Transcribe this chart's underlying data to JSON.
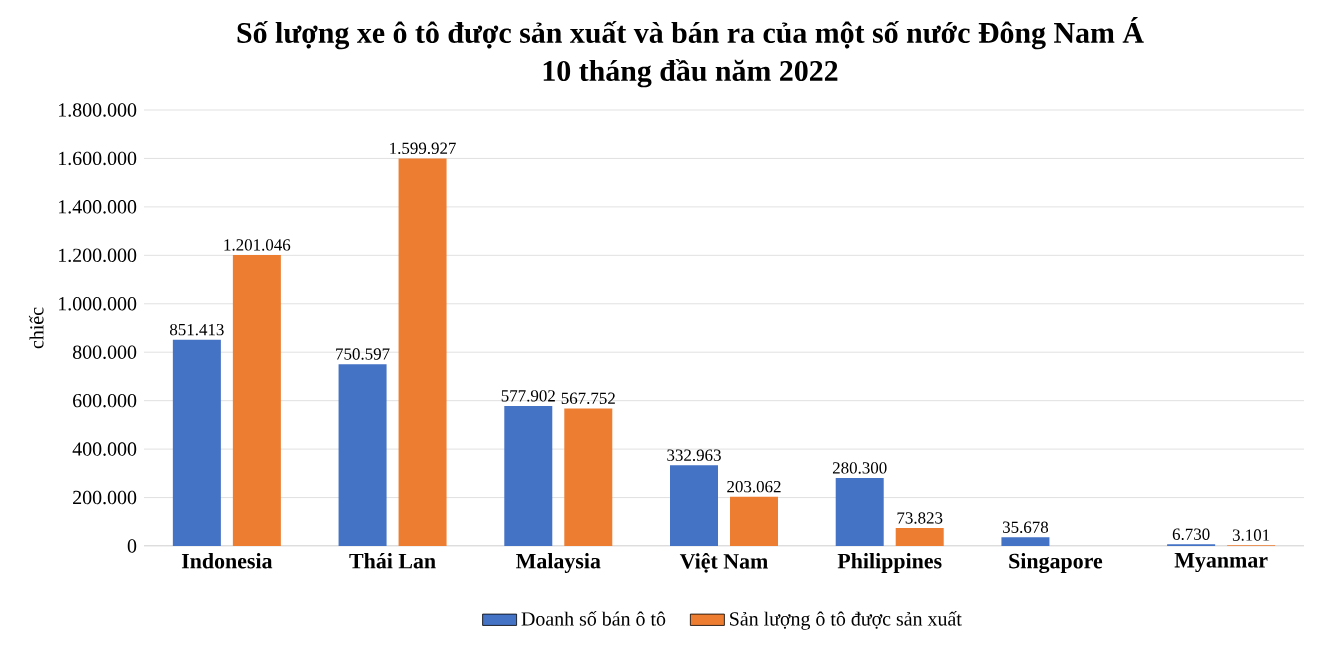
{
  "chart_data": {
    "type": "bar",
    "title": "Số lượng xe ô tô được sản xuất và bán ra của một số nước Đông Nam Á",
    "subtitle": "10 tháng đầu năm 2022",
    "ylabel": "chiếc",
    "categories": [
      "Indonesia",
      "Thái Lan",
      "Malaysia",
      "Việt Nam",
      "Philippines",
      "Singapore",
      "Myanmar"
    ],
    "series": [
      {
        "name": "Doanh số bán ô tô",
        "color": "#4472c4",
        "values": [
          851413,
          750597,
          577902,
          332963,
          280300,
          35678,
          6730
        ],
        "value_labels": [
          "851.413",
          "750.597",
          "577.902",
          "332.963",
          "280.300",
          "35.678",
          "6.730"
        ]
      },
      {
        "name": "Sản lượng ô tô được sản xuất",
        "color": "#ed7d31",
        "values": [
          1201046,
          1599927,
          567752,
          203062,
          73823,
          null,
          3101
        ],
        "value_labels": [
          "1.201.046",
          "1.599.927",
          "567.752",
          "203.062",
          "73.823",
          null,
          "3.101"
        ]
      }
    ],
    "ylim": [
      0,
      1800000
    ],
    "yticks": [
      {
        "value": 0,
        "label": "0"
      },
      {
        "value": 200000,
        "label": "200.000"
      },
      {
        "value": 400000,
        "label": "400.000"
      },
      {
        "value": 600000,
        "label": "600.000"
      },
      {
        "value": 800000,
        "label": "800.000"
      },
      {
        "value": 1000000,
        "label": "1.000.000"
      },
      {
        "value": 1200000,
        "label": "1.200.000"
      },
      {
        "value": 1400000,
        "label": "1.400.000"
      },
      {
        "value": 1600000,
        "label": "1.600.000"
      },
      {
        "value": 1800000,
        "label": "1.800.000"
      }
    ],
    "grid": "y",
    "legend": "bottom"
  }
}
